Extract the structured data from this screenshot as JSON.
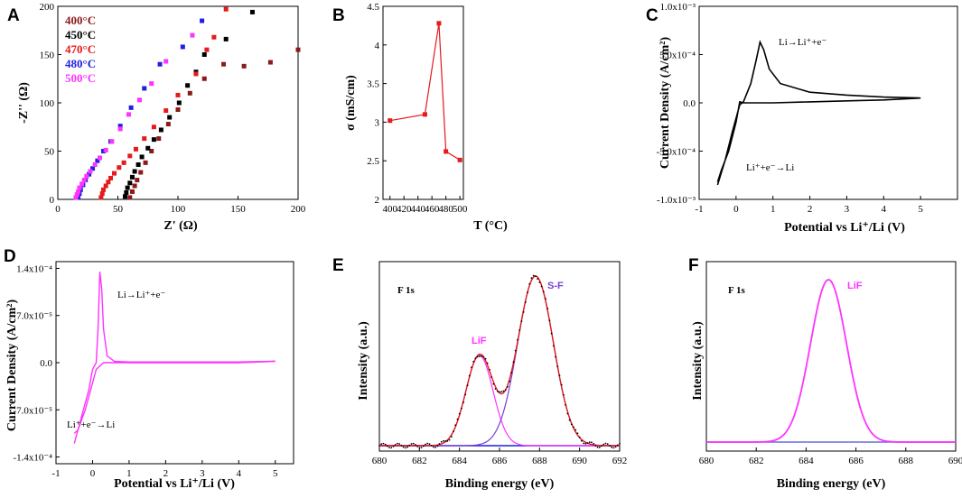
{
  "panels": {
    "A": {
      "letter": "A",
      "chart_data": {
        "type": "scatter",
        "xlabel": "Z' (Ω)",
        "ylabel": "-Z'' (Ω)",
        "xlim": [
          0,
          200
        ],
        "ylim": [
          0,
          200
        ],
        "xticks": [
          0,
          50,
          100,
          150,
          200
        ],
        "yticks": [
          0,
          50,
          100,
          150,
          200
        ],
        "legend": [
          {
            "label": "400°C",
            "color": "#8b1a1a"
          },
          {
            "label": "450°C",
            "color": "#000000"
          },
          {
            "label": "470°C",
            "color": "#e41a1c"
          },
          {
            "label": "480°C",
            "color": "#1f1fe0"
          },
          {
            "label": "500°C",
            "color": "#ff33ff"
          }
        ],
        "series": [
          {
            "name": "400°C",
            "color": "#8b1a1a",
            "points": [
              [
                60,
                2
              ],
              [
                62,
                8
              ],
              [
                64,
                14
              ],
              [
                66,
                20
              ],
              [
                69,
                28
              ],
              [
                73,
                38
              ],
              [
                78,
                50
              ],
              [
                84,
                63
              ],
              [
                92,
                78
              ],
              [
                100,
                93
              ],
              [
                110,
                110
              ],
              [
                122,
                125
              ],
              [
                138,
                140
              ],
              [
                155,
                138
              ],
              [
                177,
                142
              ],
              [
                200,
                155
              ]
            ]
          },
          {
            "name": "450°C",
            "color": "#000000",
            "points": [
              [
                56,
                3
              ],
              [
                57,
                7
              ],
              [
                58,
                12
              ],
              [
                60,
                17
              ],
              [
                62,
                23
              ],
              [
                64,
                29
              ],
              [
                67,
                36
              ],
              [
                70,
                44
              ],
              [
                75,
                53
              ],
              [
                80,
                62
              ],
              [
                86,
                72
              ],
              [
                93,
                85
              ],
              [
                101,
                100
              ],
              [
                108,
                118
              ],
              [
                115,
                132
              ],
              [
                122,
                150
              ],
              [
                140,
                166
              ],
              [
                162,
                194
              ]
            ]
          },
          {
            "name": "470°C",
            "color": "#e41a1c",
            "points": [
              [
                36,
                2
              ],
              [
                37,
                6
              ],
              [
                38,
                10
              ],
              [
                40,
                14
              ],
              [
                42,
                18
              ],
              [
                44,
                22
              ],
              [
                47,
                27
              ],
              [
                51,
                33
              ],
              [
                55,
                38
              ],
              [
                60,
                45
              ],
              [
                65,
                52
              ],
              [
                72,
                63
              ],
              [
                80,
                75
              ],
              [
                90,
                92
              ],
              [
                100,
                108
              ],
              [
                115,
                130
              ],
              [
                124,
                155
              ],
              [
                130,
                168
              ],
              [
                140,
                197
              ]
            ]
          },
          {
            "name": "480°C",
            "color": "#1f1fe0",
            "points": [
              [
                17,
                2
              ],
              [
                18,
                6
              ],
              [
                19,
                10
              ],
              [
                21,
                15
              ],
              [
                23,
                20
              ],
              [
                26,
                26
              ],
              [
                29,
                32
              ],
              [
                33,
                40
              ],
              [
                38,
                50
              ],
              [
                44,
                60
              ],
              [
                52,
                76
              ],
              [
                61,
                95
              ],
              [
                72,
                115
              ],
              [
                85,
                140
              ],
              [
                104,
                158
              ],
              [
                120,
                185
              ]
            ]
          },
          {
            "name": "500°C",
            "color": "#ff33ff",
            "points": [
              [
                15,
                2
              ],
              [
                16,
                5
              ],
              [
                17,
                8
              ],
              [
                18,
                12
              ],
              [
                20,
                16
              ],
              [
                22,
                20
              ],
              [
                24,
                24
              ],
              [
                27,
                29
              ],
              [
                31,
                36
              ],
              [
                35,
                43
              ],
              [
                40,
                51
              ],
              [
                45,
                60
              ],
              [
                52,
                73
              ],
              [
                59,
                88
              ],
              [
                68,
                103
              ],
              [
                78,
                120
              ],
              [
                90,
                143
              ],
              [
                112,
                170
              ]
            ]
          }
        ]
      }
    },
    "B": {
      "letter": "B",
      "chart_data": {
        "type": "line",
        "xlabel": "T (°C)",
        "ylabel": "σ (mS/cm)",
        "xlim": [
          390,
          505
        ],
        "ylim": [
          2.0,
          4.5
        ],
        "xticks": [
          400,
          420,
          440,
          460,
          480,
          500
        ],
        "yticks": [
          2.0,
          2.5,
          3.0,
          3.5,
          4.0,
          4.5
        ],
        "color": "#e41a1c",
        "x": [
          400,
          450,
          470,
          480,
          500
        ],
        "y": [
          3.02,
          3.1,
          4.28,
          2.62,
          2.51
        ]
      }
    },
    "C": {
      "letter": "C",
      "chart_data": {
        "type": "line",
        "xlabel": "Potential vs Li⁺/Li (V)",
        "ylabel": "Current Density (A/cm²)",
        "xlim": [
          -1,
          6
        ],
        "ylim": [
          -0.001,
          0.001
        ],
        "xticks": [
          -1,
          0,
          1,
          2,
          3,
          4,
          5
        ],
        "yticks": [
          -0.001,
          -0.0005,
          0,
          0.0005,
          0.001
        ],
        "ytick_labels": [
          "-1.0x10⁻³",
          "-5.0x10⁻⁴",
          "0.0",
          "5.0x10⁻⁴",
          "1.0x10⁻³"
        ],
        "color": "#000000",
        "curve_x": [
          -0.5,
          -0.3,
          -0.1,
          0.1,
          0.2,
          0.4,
          0.55,
          0.65,
          0.75,
          0.9,
          1.2,
          2.0,
          3.0,
          4.0,
          5.0,
          4.0,
          3.0,
          2.0,
          1.0,
          0.5,
          0.2,
          0.1,
          0.0,
          -0.2,
          -0.4,
          -0.5
        ],
        "curve_y": [
          -0.00085,
          -0.0006,
          -0.0003,
          -2e-05,
          1e-05,
          0.0002,
          0.00045,
          0.00063,
          0.00055,
          0.00035,
          0.0002,
          0.00011,
          8e-05,
          6e-05,
          5e-05,
          3e-05,
          2e-05,
          1e-05,
          0.0,
          0.0,
          0.0,
          1e-05,
          -0.0002,
          -0.0005,
          -0.0007,
          -0.00082
        ],
        "annotations": {
          "oxidation": "Li→Li⁺+e⁻",
          "reduction": "Li⁺+e⁻→Li"
        }
      }
    },
    "D": {
      "letter": "D",
      "chart_data": {
        "type": "line",
        "xlabel": "Potential vs Li⁺/Li (V)",
        "ylabel": "Current Density (A/cm²)",
        "xlim": [
          -1,
          5.5
        ],
        "ylim": [
          -0.00015,
          0.00015
        ],
        "xticks": [
          -1,
          0,
          1,
          2,
          3,
          4,
          5
        ],
        "yticks": [
          -0.00014,
          -7e-05,
          0,
          7e-05,
          0.00014
        ],
        "ytick_labels": [
          "-1.4x10⁻⁴",
          "-7.0x10⁻⁵",
          "0.0",
          "7.0x10⁻⁵",
          "1.4x10⁻⁴"
        ],
        "color": "#ff33ff",
        "curve_x": [
          -0.5,
          -0.3,
          -0.1,
          0.0,
          0.1,
          0.15,
          0.2,
          0.25,
          0.3,
          0.4,
          0.6,
          1.0,
          2.0,
          3.0,
          4.0,
          5.0,
          4.0,
          3.0,
          2.0,
          1.0,
          0.3,
          0.1,
          0.0,
          -0.2,
          -0.4,
          -0.5
        ],
        "curve_y": [
          -0.00012,
          -8e-05,
          -4e-05,
          -1e-05,
          0.0,
          5e-05,
          0.000135,
          0.00011,
          5e-05,
          1e-05,
          2e-06,
          1e-06,
          1e-06,
          1e-06,
          1e-06,
          2e-06,
          0.0,
          0.0,
          0.0,
          0.0,
          0.0,
          -1e-05,
          -3e-05,
          -7e-05,
          -0.0001,
          -0.000105
        ],
        "annotations": {
          "oxidation": "Li→Li⁺+e⁻",
          "reduction": "Li⁺+e⁻→Li"
        }
      }
    },
    "E": {
      "letter": "E",
      "chart_data": {
        "type": "line",
        "title": "F 1s",
        "xlabel": "Binding energy (eV)",
        "ylabel": "Intensity (a.u.)",
        "xlim": [
          680,
          692
        ],
        "ylim": [
          0,
          1.05
        ],
        "xticks": [
          680,
          682,
          684,
          686,
          688,
          690,
          692
        ],
        "peaks": [
          {
            "label": "LiF",
            "center": 685.0,
            "height": 0.5,
            "fwhm": 1.6,
            "color": "#ff33ff"
          },
          {
            "label": "S-F",
            "center": 687.8,
            "height": 0.94,
            "fwhm": 2.1,
            "color": "#7a3fd1"
          }
        ],
        "baseline": 0.03,
        "envelope_color": "#e41a1c",
        "raw_color": "#000000",
        "baseline_color": "#1f1fe0"
      }
    },
    "F": {
      "letter": "F",
      "chart_data": {
        "type": "line",
        "title": "F 1s",
        "xlabel": "Binding energy (eV)",
        "ylabel": "Intensity (a.u.)",
        "xlim": [
          680,
          690
        ],
        "ylim": [
          0,
          1.05
        ],
        "xticks": [
          680,
          682,
          684,
          686,
          688,
          690
        ],
        "peaks": [
          {
            "label": "LiF",
            "center": 684.9,
            "height": 0.9,
            "fwhm": 1.7,
            "color": "#ff33ff"
          }
        ],
        "baseline": 0.05,
        "baseline_color": "#6a6ae0"
      }
    }
  }
}
